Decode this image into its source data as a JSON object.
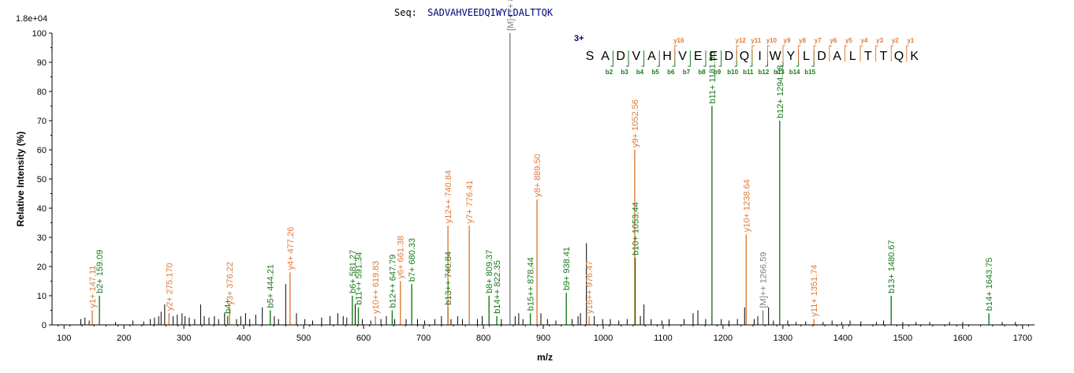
{
  "header": {
    "seq_prefix": "Seq:",
    "seq_value": "SADVAHVEEDQIWYLDALTTQK",
    "y_scale": "1.8e+04"
  },
  "colors": {
    "b": "#1a7a1a",
    "y": "#e07b39",
    "m": "#808080",
    "noise": "#000000",
    "seq": "#000080"
  },
  "chart_data": {
    "type": "bar",
    "title": "",
    "xlabel": "m/z",
    "ylabel": "Relative   Intensity (%)",
    "xlim": [
      80,
      1720
    ],
    "ylim": [
      0,
      100
    ],
    "x_ticks": [
      "100",
      "200",
      "300",
      "400",
      "500",
      "600",
      "700",
      "800",
      "900",
      "1000",
      "1100",
      "1200",
      "1300",
      "1400",
      "1500",
      "1600",
      "1700"
    ],
    "y_ticks": [
      "0",
      "10",
      "20",
      "30",
      "40",
      "50",
      "60",
      "70",
      "80",
      "90",
      "100"
    ],
    "annotated_peaks": [
      {
        "mz": 147.11,
        "intensity": 5,
        "label": "y1+ 147.11",
        "type": "y"
      },
      {
        "mz": 159.09,
        "intensity": 10,
        "label": "b2+ 159.09",
        "type": "b"
      },
      {
        "mz": 275.17,
        "intensity": 4,
        "label": "y2+ 275.170",
        "type": "y"
      },
      {
        "mz": 376.22,
        "intensity": 6,
        "label": "y3+ 376.22",
        "type": "y"
      },
      {
        "mz": 373.0,
        "intensity": 3,
        "label": "b4+",
        "type": "b"
      },
      {
        "mz": 444.21,
        "intensity": 5,
        "label": "b5+ 444.21",
        "type": "b"
      },
      {
        "mz": 477.26,
        "intensity": 18,
        "label": "y4+ 477.26",
        "type": "y"
      },
      {
        "mz": 581.27,
        "intensity": 10,
        "label": "b6+ 581.27",
        "type": "b"
      },
      {
        "mz": 591.34,
        "intensity": 6,
        "label": "b11++ 591.34",
        "type": "b"
      },
      {
        "mz": 619.83,
        "intensity": 3,
        "label": "y10++ 619.83",
        "type": "y"
      },
      {
        "mz": 647.79,
        "intensity": 5,
        "label": "b12++ 647.79",
        "type": "b"
      },
      {
        "mz": 661.38,
        "intensity": 15,
        "label": "y6+ 661.38",
        "type": "y"
      },
      {
        "mz": 680.33,
        "intensity": 14,
        "label": "b7+ 680.33",
        "type": "b"
      },
      {
        "mz": 740.84,
        "intensity": 6,
        "label": "b13++ 740.84",
        "type": "b"
      },
      {
        "mz": 740.84,
        "intensity": 34,
        "label": "y12++ 740.84",
        "type": "y"
      },
      {
        "mz": 776.41,
        "intensity": 34,
        "label": "y7+ 776.41",
        "type": "y"
      },
      {
        "mz": 809.37,
        "intensity": 10,
        "label": "b8+ 809.37",
        "type": "b"
      },
      {
        "mz": 822.35,
        "intensity": 3,
        "label": "b14++ 822.35",
        "type": "b"
      },
      {
        "mz": 844.4,
        "intensity": 100,
        "label": "[M]+++ 844.4",
        "type": "m"
      },
      {
        "mz": 878.44,
        "intensity": 4,
        "label": "b15++ 878.44",
        "type": "b"
      },
      {
        "mz": 889.5,
        "intensity": 43,
        "label": "y8+ 889.50",
        "type": "y"
      },
      {
        "mz": 938.41,
        "intensity": 11,
        "label": "b9+ 938.41",
        "type": "b"
      },
      {
        "mz": 976.47,
        "intensity": 3,
        "label": "y16++ 976.47",
        "type": "y"
      },
      {
        "mz": 1052.56,
        "intensity": 60,
        "label": "y9+ 1052.56",
        "type": "y"
      },
      {
        "mz": 1053.44,
        "intensity": 23,
        "label": "b10+ 1053.44",
        "type": "b"
      },
      {
        "mz": 1181.5,
        "intensity": 75,
        "label": "b11+ 1181.50",
        "type": "b"
      },
      {
        "mz": 1238.64,
        "intensity": 31,
        "label": "y10+ 1238.64",
        "type": "y"
      },
      {
        "mz": 1266.59,
        "intensity": 5,
        "label": "[M]++ 1266.59",
        "type": "m"
      },
      {
        "mz": 1294.58,
        "intensity": 70,
        "label": "b12+ 1294.58",
        "type": "b"
      },
      {
        "mz": 1351.74,
        "intensity": 2,
        "label": "y11+ 1351.74",
        "type": "y"
      },
      {
        "mz": 1480.67,
        "intensity": 10,
        "label": "b13+ 1480.67",
        "type": "b"
      },
      {
        "mz": 1643.75,
        "intensity": 4,
        "label": "b14+ 1643.75",
        "type": "b"
      }
    ],
    "unlabeled_peaks": [
      [
        128,
        2
      ],
      [
        135,
        2.5
      ],
      [
        142,
        1.5
      ],
      [
        186,
        1
      ],
      [
        215,
        1.5
      ],
      [
        233,
        1.2
      ],
      [
        244,
        2
      ],
      [
        251,
        2.5
      ],
      [
        258,
        3
      ],
      [
        262,
        4.5
      ],
      [
        268,
        7
      ],
      [
        282,
        3
      ],
      [
        289,
        3.5
      ],
      [
        297,
        4
      ],
      [
        302,
        3
      ],
      [
        309,
        2.5
      ],
      [
        318,
        2
      ],
      [
        328,
        7
      ],
      [
        334,
        3
      ],
      [
        342,
        2.5
      ],
      [
        351,
        3
      ],
      [
        358,
        2
      ],
      [
        368,
        4
      ],
      [
        388,
        2
      ],
      [
        395,
        3
      ],
      [
        403,
        4
      ],
      [
        410,
        2
      ],
      [
        420,
        3.5
      ],
      [
        431,
        6
      ],
      [
        451,
        3
      ],
      [
        458,
        2
      ],
      [
        470,
        14
      ],
      [
        488,
        4
      ],
      [
        502,
        2
      ],
      [
        515,
        1.5
      ],
      [
        530,
        2.5
      ],
      [
        544,
        3
      ],
      [
        557,
        4
      ],
      [
        566,
        3
      ],
      [
        572,
        2.5
      ],
      [
        586,
        7
      ],
      [
        598,
        2
      ],
      [
        612,
        1.5
      ],
      [
        629,
        2
      ],
      [
        638,
        3
      ],
      [
        652,
        2
      ],
      [
        671,
        2
      ],
      [
        690,
        2
      ],
      [
        702,
        1.5
      ],
      [
        719,
        2
      ],
      [
        730,
        3
      ],
      [
        746,
        2
      ],
      [
        757,
        3
      ],
      [
        765,
        2
      ],
      [
        790,
        2
      ],
      [
        798,
        3
      ],
      [
        830,
        2
      ],
      [
        853,
        3
      ],
      [
        859,
        4
      ],
      [
        866,
        2
      ],
      [
        896,
        4
      ],
      [
        907,
        2
      ],
      [
        921,
        1.5
      ],
      [
        948,
        2
      ],
      [
        958,
        3
      ],
      [
        962,
        4
      ],
      [
        972,
        28
      ],
      [
        985,
        3
      ],
      [
        999,
        2
      ],
      [
        1012,
        2
      ],
      [
        1026,
        1.5
      ],
      [
        1040,
        2
      ],
      [
        1062,
        3
      ],
      [
        1068,
        7
      ],
      [
        1080,
        2
      ],
      [
        1098,
        1.5
      ],
      [
        1110,
        2
      ],
      [
        1135,
        2
      ],
      [
        1150,
        4
      ],
      [
        1158,
        5
      ],
      [
        1171,
        2
      ],
      [
        1197,
        2
      ],
      [
        1210,
        1.5
      ],
      [
        1224,
        2
      ],
      [
        1236,
        6
      ],
      [
        1252,
        2
      ],
      [
        1258,
        3
      ],
      [
        1276,
        6
      ],
      [
        1284,
        1.5
      ],
      [
        1308,
        1.5
      ],
      [
        1322,
        1
      ],
      [
        1338,
        1.2
      ],
      [
        1367,
        1
      ],
      [
        1382,
        1.5
      ],
      [
        1398,
        1
      ],
      [
        1412,
        1.5
      ],
      [
        1430,
        1.2
      ],
      [
        1456,
        1
      ],
      [
        1468,
        1.5
      ],
      [
        1500,
        1
      ],
      [
        1522,
        1
      ],
      [
        1545,
        1
      ],
      [
        1578,
        1
      ],
      [
        1600,
        1
      ],
      [
        1666,
        1
      ],
      [
        1688,
        1
      ]
    ]
  },
  "sequence_panel": {
    "charge": "3+",
    "letters": [
      "S",
      "A",
      "D",
      "V",
      "A",
      "H",
      "V",
      "E",
      "E",
      "D",
      "Q",
      "I",
      "W",
      "Y",
      "L",
      "D",
      "A",
      "L",
      "T",
      "T",
      "Q",
      "K"
    ],
    "b_labels": [
      "b2",
      "b3",
      "b4",
      "b5",
      "b6",
      "b7",
      "b8",
      "b9",
      "b10",
      "b11",
      "b12",
      "b13",
      "b14",
      "b15"
    ],
    "y_labels": [
      "y16",
      "y12",
      "y11",
      "y10",
      "y9",
      "y8",
      "y7",
      "y6",
      "y5",
      "y4",
      "y3",
      "y2",
      "y1"
    ]
  }
}
